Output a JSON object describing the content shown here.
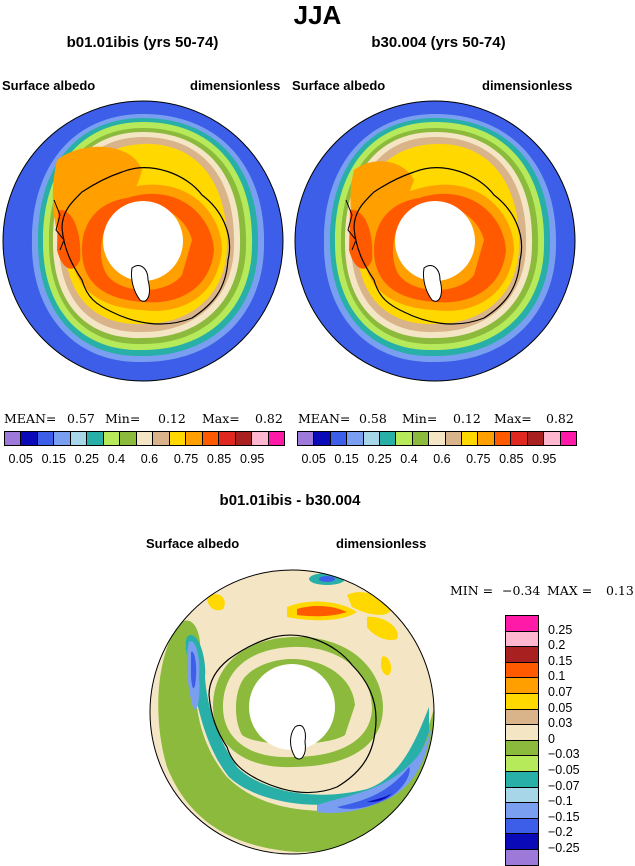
{
  "main_title": "JJA",
  "left_panel": {
    "title": "b01.01ibis (yrs 50-74)",
    "var_label": "Surface albedo",
    "units": "dimensionless",
    "mean_label": "MEAN=",
    "mean": "0.57",
    "min_label": "Min=",
    "min": "0.12",
    "max_label": "Max=",
    "max": "0.82"
  },
  "right_panel": {
    "title": "b30.004 (yrs 50-74)",
    "var_label": "Surface albedo",
    "units": "dimensionless",
    "mean_label": "MEAN=",
    "mean": "0.58",
    "min_label": "Min=",
    "min": "0.12",
    "max_label": "Max=",
    "max": "0.82"
  },
  "colorbar": {
    "colors": [
      "#9d79d9",
      "#0a0ab8",
      "#3c5ee8",
      "#7b9ff0",
      "#a6d6e8",
      "#28b0a8",
      "#b6ea5a",
      "#8cba3c",
      "#f4e6c4",
      "#d9b48a",
      "#ffd800",
      "#ff9f00",
      "#ff5a00",
      "#e02820",
      "#a82020",
      "#ffb6cf",
      "#ff1aa8"
    ],
    "tick_labels": [
      "0.05",
      "0.15",
      "0.25",
      "0.4",
      "0.6",
      "0.75",
      "0.85",
      "0.95"
    ]
  },
  "diff_panel": {
    "title": "b01.01ibis - b30.004",
    "var_label": "Surface albedo",
    "units": "dimensionless",
    "min_label": "MIN =",
    "min": "−0.34",
    "max_label": "MAX =",
    "max": "0.13"
  },
  "diff_colorbar": {
    "colors": [
      "#ff1aa8",
      "#ffb6cf",
      "#a82020",
      "#ff5a00",
      "#ff9f00",
      "#ffd800",
      "#d9b48a",
      "#f4e6c4",
      "#8cba3c",
      "#b6ea5a",
      "#28b0a8",
      "#a6d6e8",
      "#7b9ff0",
      "#3c5ee8",
      "#0a0ab8",
      "#9d79d9"
    ],
    "labels": [
      "0.25",
      "0.2",
      "0.15",
      "0.1",
      "0.07",
      "0.05",
      "0.03",
      "0",
      "−0.03",
      "−0.05",
      "−0.07",
      "−0.1",
      "−0.15",
      "−0.2",
      "−0.25"
    ]
  }
}
